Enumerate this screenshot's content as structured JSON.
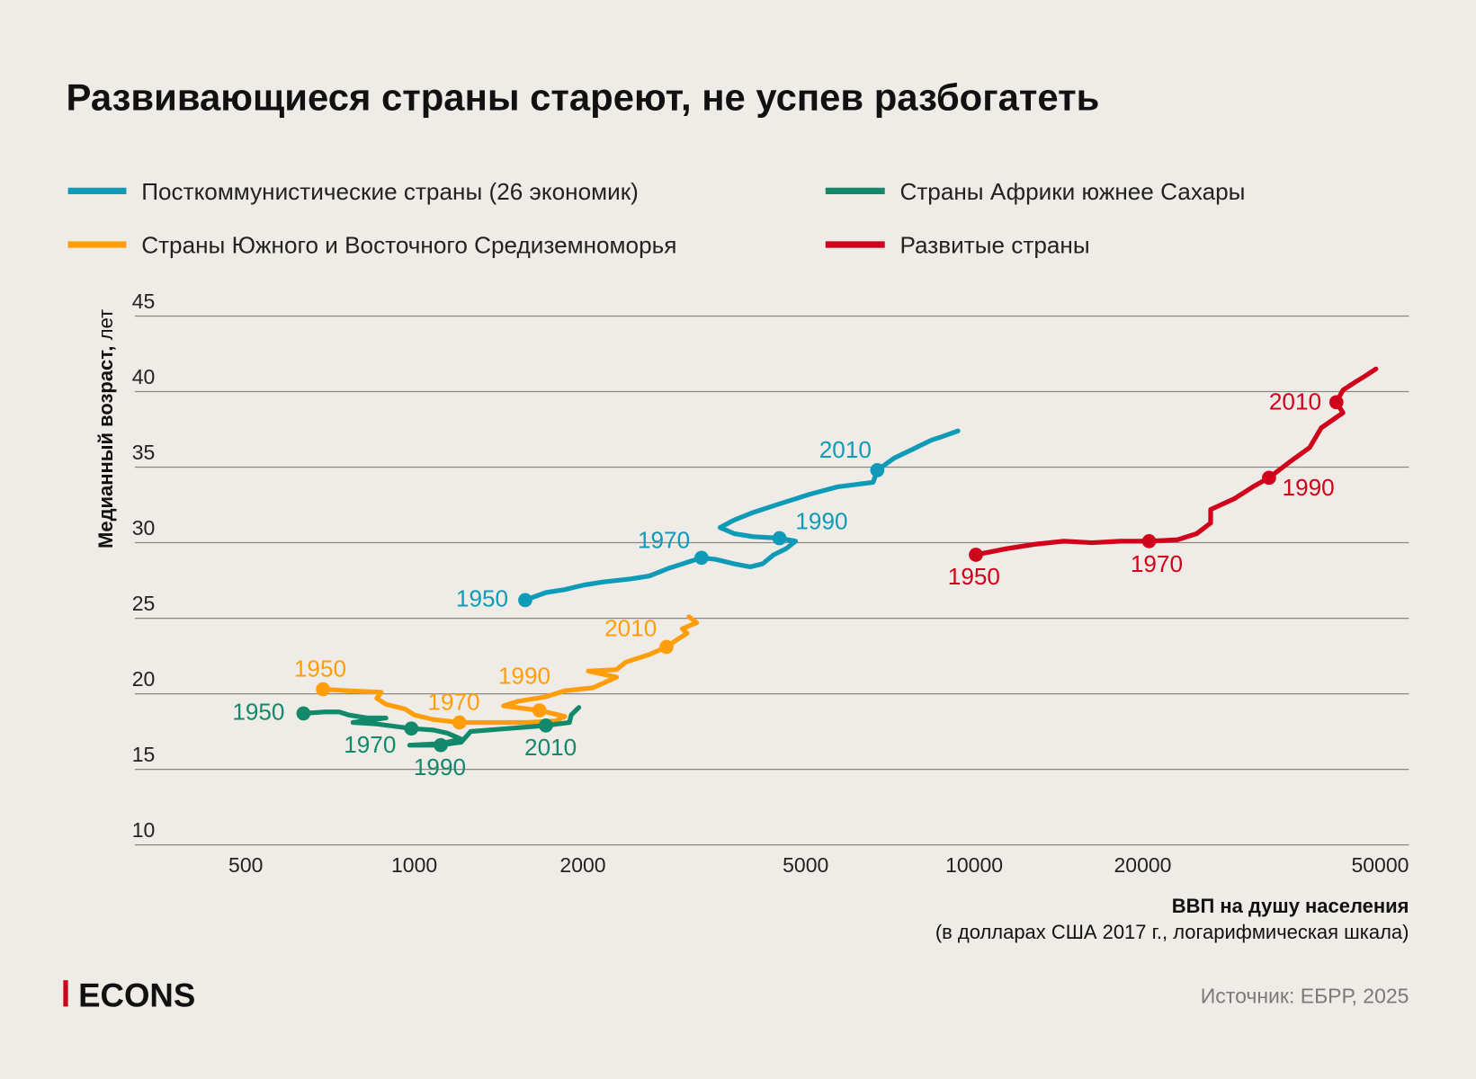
{
  "title": "Развивающиеся страны стареют, не успев разбогатеть",
  "legend": [
    {
      "label": "Посткоммунистические страны (26 экономик)",
      "color": "#0f9bb7"
    },
    {
      "label": "Страны Африки южнее Сахары",
      "color": "#12896a"
    },
    {
      "label": "Страны Южного и Восточного Средиземноморья",
      "color": "#ff9e0a"
    },
    {
      "label": "Развитые страны",
      "color": "#d0021b"
    }
  ],
  "yaxis": {
    "label_bold": "Медианный возраст,",
    "label_normal": "лет"
  },
  "xaxis": {
    "label_bold": "ВВП на душу населения",
    "label_normal": "(в долларах США 2017 г., логарифмическая шкала)"
  },
  "source": "Источник: ЕБРР, 2025",
  "logo": "ECONS",
  "chart_data": {
    "type": "line",
    "title": "Развивающиеся страны стареют, не успев разбогатеть",
    "xlabel": "ВВП на душу населения (в долларах США 2017 г., логарифмическая шкала)",
    "ylabel": "Медианный возраст, лет",
    "xscale": "log",
    "xlim": [
      320,
      60000
    ],
    "ylim": [
      10,
      45
    ],
    "xticks": [
      "500",
      "1000",
      "2000",
      "5000",
      "10000",
      "20000",
      "50000"
    ],
    "xtick_values": [
      500,
      1000,
      2000,
      5000,
      10000,
      20000,
      50000
    ],
    "yticks": [
      "45",
      "40",
      "35",
      "30",
      "25",
      "20",
      "15",
      "10"
    ],
    "ytick_values": [
      45,
      40,
      35,
      30,
      25,
      20,
      15,
      10
    ],
    "grid": "horizontal",
    "legend_position": "top",
    "series": [
      {
        "name": "Посткоммунистические страны (26 экономик)",
        "color": "#0f9bb7",
        "points": [
          [
            1578,
            26.2
          ],
          [
            1718,
            26.7
          ],
          [
            1857,
            26.9
          ],
          [
            2009,
            27.2
          ],
          [
            2168,
            27.4
          ],
          [
            2436,
            27.6
          ],
          [
            2632,
            27.8
          ],
          [
            2843,
            28.3
          ],
          [
            3071,
            28.7
          ],
          [
            3258,
            29.0
          ],
          [
            3451,
            28.9
          ],
          [
            3727,
            28.6
          ],
          [
            3981,
            28.4
          ],
          [
            4186,
            28.6
          ],
          [
            4386,
            29.2
          ],
          [
            4611,
            29.6
          ],
          [
            4797,
            30.1
          ],
          [
            4490,
            30.3
          ],
          [
            4027,
            30.4
          ],
          [
            3727,
            30.6
          ],
          [
            3516,
            31.0
          ],
          [
            3727,
            31.5
          ],
          [
            4027,
            32.0
          ],
          [
            4518,
            32.6
          ],
          [
            5080,
            33.2
          ],
          [
            5702,
            33.7
          ],
          [
            6600,
            34.0
          ],
          [
            6714,
            34.8
          ],
          [
            7194,
            35.6
          ],
          [
            7780,
            36.2
          ],
          [
            8398,
            36.8
          ],
          [
            8730,
            37.0
          ],
          [
            9357,
            37.4
          ]
        ],
        "markers": [
          {
            "year": "1950",
            "gdp": 1578,
            "age": 26.2
          },
          {
            "year": "1970",
            "gdp": 3258,
            "age": 29.0
          },
          {
            "year": "1990",
            "gdp": 4490,
            "age": 30.3
          },
          {
            "year": "2010",
            "gdp": 6714,
            "age": 34.8
          }
        ]
      },
      {
        "name": "Страны Южного и Восточного Средиземноморья",
        "color": "#ff9e0a",
        "points": [
          [
            687,
            20.3
          ],
          [
            763,
            20.2
          ],
          [
            873,
            20.1
          ],
          [
            857,
            19.7
          ],
          [
            890,
            19.3
          ],
          [
            962,
            19.0
          ],
          [
            1000,
            18.6
          ],
          [
            1080,
            18.3
          ],
          [
            1204,
            18.1
          ],
          [
            1362,
            18.1
          ],
          [
            1591,
            18.1
          ],
          [
            1787,
            18.2
          ],
          [
            1858,
            18.5
          ],
          [
            1673,
            18.9
          ],
          [
            1444,
            19.2
          ],
          [
            1531,
            19.5
          ],
          [
            1718,
            19.8
          ],
          [
            1858,
            20.2
          ],
          [
            2087,
            20.4
          ],
          [
            2297,
            21.1
          ],
          [
            2045,
            21.5
          ],
          [
            2297,
            21.6
          ],
          [
            2388,
            22.1
          ],
          [
            2630,
            22.6
          ],
          [
            2821,
            23.1
          ],
          [
            2951,
            23.6
          ],
          [
            3071,
            24.0
          ],
          [
            3011,
            24.3
          ],
          [
            3194,
            24.7
          ],
          [
            3095,
            25.1
          ]
        ],
        "markers": [
          {
            "year": "1950",
            "gdp": 687,
            "age": 20.3
          },
          {
            "year": "1970",
            "gdp": 1204,
            "age": 18.1
          },
          {
            "year": "1990",
            "gdp": 1673,
            "age": 18.9
          },
          {
            "year": "2010",
            "gdp": 2821,
            "age": 23.1
          }
        ]
      },
      {
        "name": "Страны Африки южнее Сахары",
        "color": "#12896a",
        "points": [
          [
            634,
            18.7
          ],
          [
            692,
            18.8
          ],
          [
            734,
            18.8
          ],
          [
            763,
            18.6
          ],
          [
            824,
            18.4
          ],
          [
            890,
            18.4
          ],
          [
            777,
            18.1
          ],
          [
            857,
            18.0
          ],
          [
            988,
            17.7
          ],
          [
            1080,
            17.6
          ],
          [
            1145,
            17.4
          ],
          [
            1213,
            17.0
          ],
          [
            1115,
            16.7
          ],
          [
            981,
            16.6
          ],
          [
            1115,
            16.6
          ],
          [
            1213,
            16.8
          ],
          [
            1261,
            17.5
          ],
          [
            1472,
            17.7
          ],
          [
            1718,
            17.9
          ],
          [
            1893,
            18.1
          ],
          [
            1907,
            18.6
          ],
          [
            1968,
            19.1
          ]
        ],
        "markers": [
          {
            "year": "1950",
            "gdp": 634,
            "age": 18.7
          },
          {
            "year": "1970",
            "gdp": 988,
            "age": 17.7
          },
          {
            "year": "1990",
            "gdp": 1115,
            "age": 16.6
          },
          {
            "year": "2010",
            "gdp": 1718,
            "age": 17.9
          }
        ]
      },
      {
        "name": "Развитые страны",
        "color": "#d0021b",
        "points": [
          [
            10070,
            29.2
          ],
          [
            11420,
            29.6
          ],
          [
            12850,
            29.9
          ],
          [
            14450,
            30.1
          ],
          [
            16240,
            30.0
          ],
          [
            18260,
            30.1
          ],
          [
            20530,
            30.1
          ],
          [
            23080,
            30.2
          ],
          [
            24960,
            30.6
          ],
          [
            26450,
            31.3
          ],
          [
            26450,
            32.2
          ],
          [
            29120,
            32.9
          ],
          [
            31470,
            33.7
          ],
          [
            33620,
            34.3
          ],
          [
            36780,
            35.4
          ],
          [
            39740,
            36.3
          ],
          [
            41670,
            37.6
          ],
          [
            45560,
            38.6
          ],
          [
            44350,
            39.3
          ],
          [
            45560,
            40.1
          ],
          [
            48240,
            40.7
          ],
          [
            49770,
            41.0
          ],
          [
            52170,
            41.5
          ]
        ],
        "markers": [
          {
            "year": "1950",
            "gdp": 10070,
            "age": 29.2
          },
          {
            "year": "1970",
            "gdp": 20530,
            "age": 30.1
          },
          {
            "year": "1990",
            "gdp": 33620,
            "age": 34.3
          },
          {
            "year": "2010",
            "gdp": 44350,
            "age": 39.3
          }
        ]
      }
    ]
  }
}
